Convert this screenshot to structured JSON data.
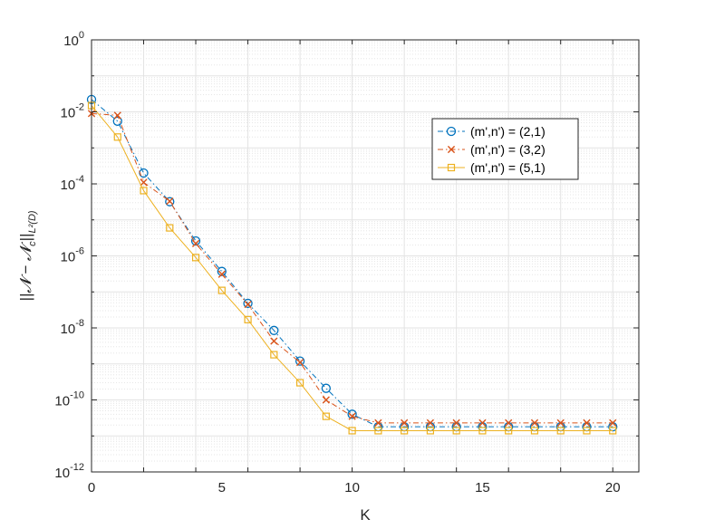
{
  "chart_data": {
    "type": "line",
    "xlabel": "K",
    "ylabel": "||𝓝 − 𝓝",
    "ylabel_sub_c": "c",
    "ylabel_tail": "||",
    "ylabel_sub_norm": "L²(D)",
    "x": [
      0,
      1,
      2,
      3,
      4,
      5,
      6,
      7,
      8,
      9,
      10,
      11,
      12,
      13,
      14,
      15,
      16,
      17,
      18,
      19,
      20
    ],
    "xlim": [
      0,
      21
    ],
    "ylim_exp": [
      -12,
      0
    ],
    "yscale": "log",
    "grid": true,
    "legend_position": "top-right",
    "xticks": [
      {
        "v": 0,
        "label": "0"
      },
      {
        "v": 5,
        "label": "5"
      },
      {
        "v": 10,
        "label": "10"
      },
      {
        "v": 15,
        "label": "15"
      },
      {
        "v": 20,
        "label": "20"
      }
    ],
    "yticks": [
      {
        "exp": 0,
        "base": "10",
        "sup": "0"
      },
      {
        "exp": -2,
        "base": "10",
        "sup": "-2"
      },
      {
        "exp": -4,
        "base": "10",
        "sup": "-4"
      },
      {
        "exp": -6,
        "base": "10",
        "sup": "-6"
      },
      {
        "exp": -8,
        "base": "10",
        "sup": "-8"
      },
      {
        "exp": -10,
        "base": "10",
        "sup": "-10"
      },
      {
        "exp": -12,
        "base": "10",
        "sup": "-12"
      }
    ],
    "series": [
      {
        "name": "(m',n') = (2,1)",
        "color": "#0072BD",
        "line": "dashdot",
        "marker": "circle",
        "y": [
          0.022,
          0.0055,
          0.0002,
          3.2e-05,
          2.6e-06,
          3.7e-07,
          4.8e-08,
          8.5e-09,
          1.2e-09,
          2.1e-10,
          4e-11,
          1.8e-11,
          1.8e-11,
          1.8e-11,
          1.8e-11,
          1.8e-11,
          1.8e-11,
          1.8e-11,
          1.8e-11,
          1.8e-11,
          1.8e-11
        ]
      },
      {
        "name": "(m',n') = (3,2)",
        "color": "#D95319",
        "line": "dashdot",
        "marker": "x",
        "y": [
          0.009,
          0.008,
          0.00011,
          3.3e-05,
          2.2e-06,
          3.1e-07,
          4.5e-08,
          4.3e-09,
          1.1e-09,
          1e-10,
          3.5e-11,
          2.3e-11,
          2.3e-11,
          2.3e-11,
          2.3e-11,
          2.3e-11,
          2.3e-11,
          2.3e-11,
          2.3e-11,
          2.3e-11,
          2.3e-11
        ]
      },
      {
        "name": "(m',n') = (5,1)",
        "color": "#EDB120",
        "line": "solid",
        "marker": "square",
        "y": [
          0.015,
          0.002,
          6.5e-05,
          6e-06,
          9e-07,
          1.1e-07,
          1.7e-08,
          1.8e-09,
          3e-10,
          3.5e-11,
          1.4e-11,
          1.4e-11,
          1.4e-11,
          1.4e-11,
          1.4e-11,
          1.4e-11,
          1.4e-11,
          1.4e-11,
          1.4e-11,
          1.4e-11,
          1.4e-11
        ]
      }
    ]
  }
}
